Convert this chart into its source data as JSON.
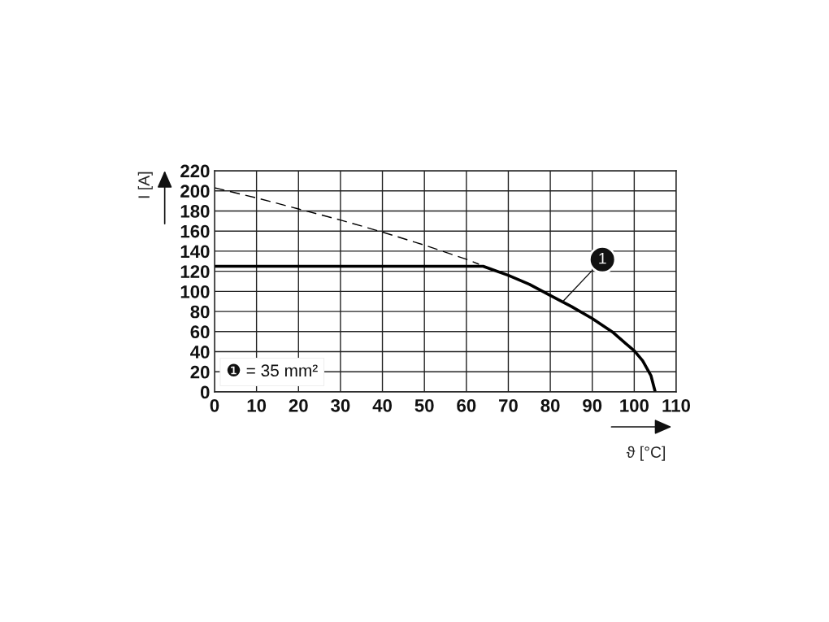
{
  "chart_data": {
    "type": "line",
    "xlabel": "ϑ [°C]",
    "ylabel": "I [A]",
    "series": [
      {
        "color": "#000000",
        "line_style": "dashed",
        "x": [
          0,
          10,
          20,
          30,
          40,
          50,
          60,
          63
        ],
        "values": [
          203,
          193,
          182,
          171,
          159,
          146,
          132,
          127
        ]
      },
      {
        "color": "#000000",
        "line_style": "solid",
        "x": [
          0,
          64,
          70,
          75,
          80,
          85,
          90,
          95,
          98,
          100,
          102,
          104,
          105
        ],
        "values": [
          125,
          125,
          116,
          107,
          96,
          85,
          73,
          59,
          48,
          41,
          31,
          16,
          0
        ]
      }
    ],
    "xlim": [
      0,
      110
    ],
    "ylim": [
      0,
      220
    ],
    "xticks": [
      0,
      10,
      20,
      30,
      40,
      50,
      60,
      70,
      80,
      90,
      100,
      110
    ],
    "yticks": [
      0,
      20,
      40,
      60,
      80,
      100,
      120,
      140,
      160,
      180,
      200,
      220
    ],
    "grid": true,
    "annotations": [
      {
        "text": "1",
        "x": 83,
        "y": 90
      },
      "❶ = 35 mm²"
    ]
  }
}
